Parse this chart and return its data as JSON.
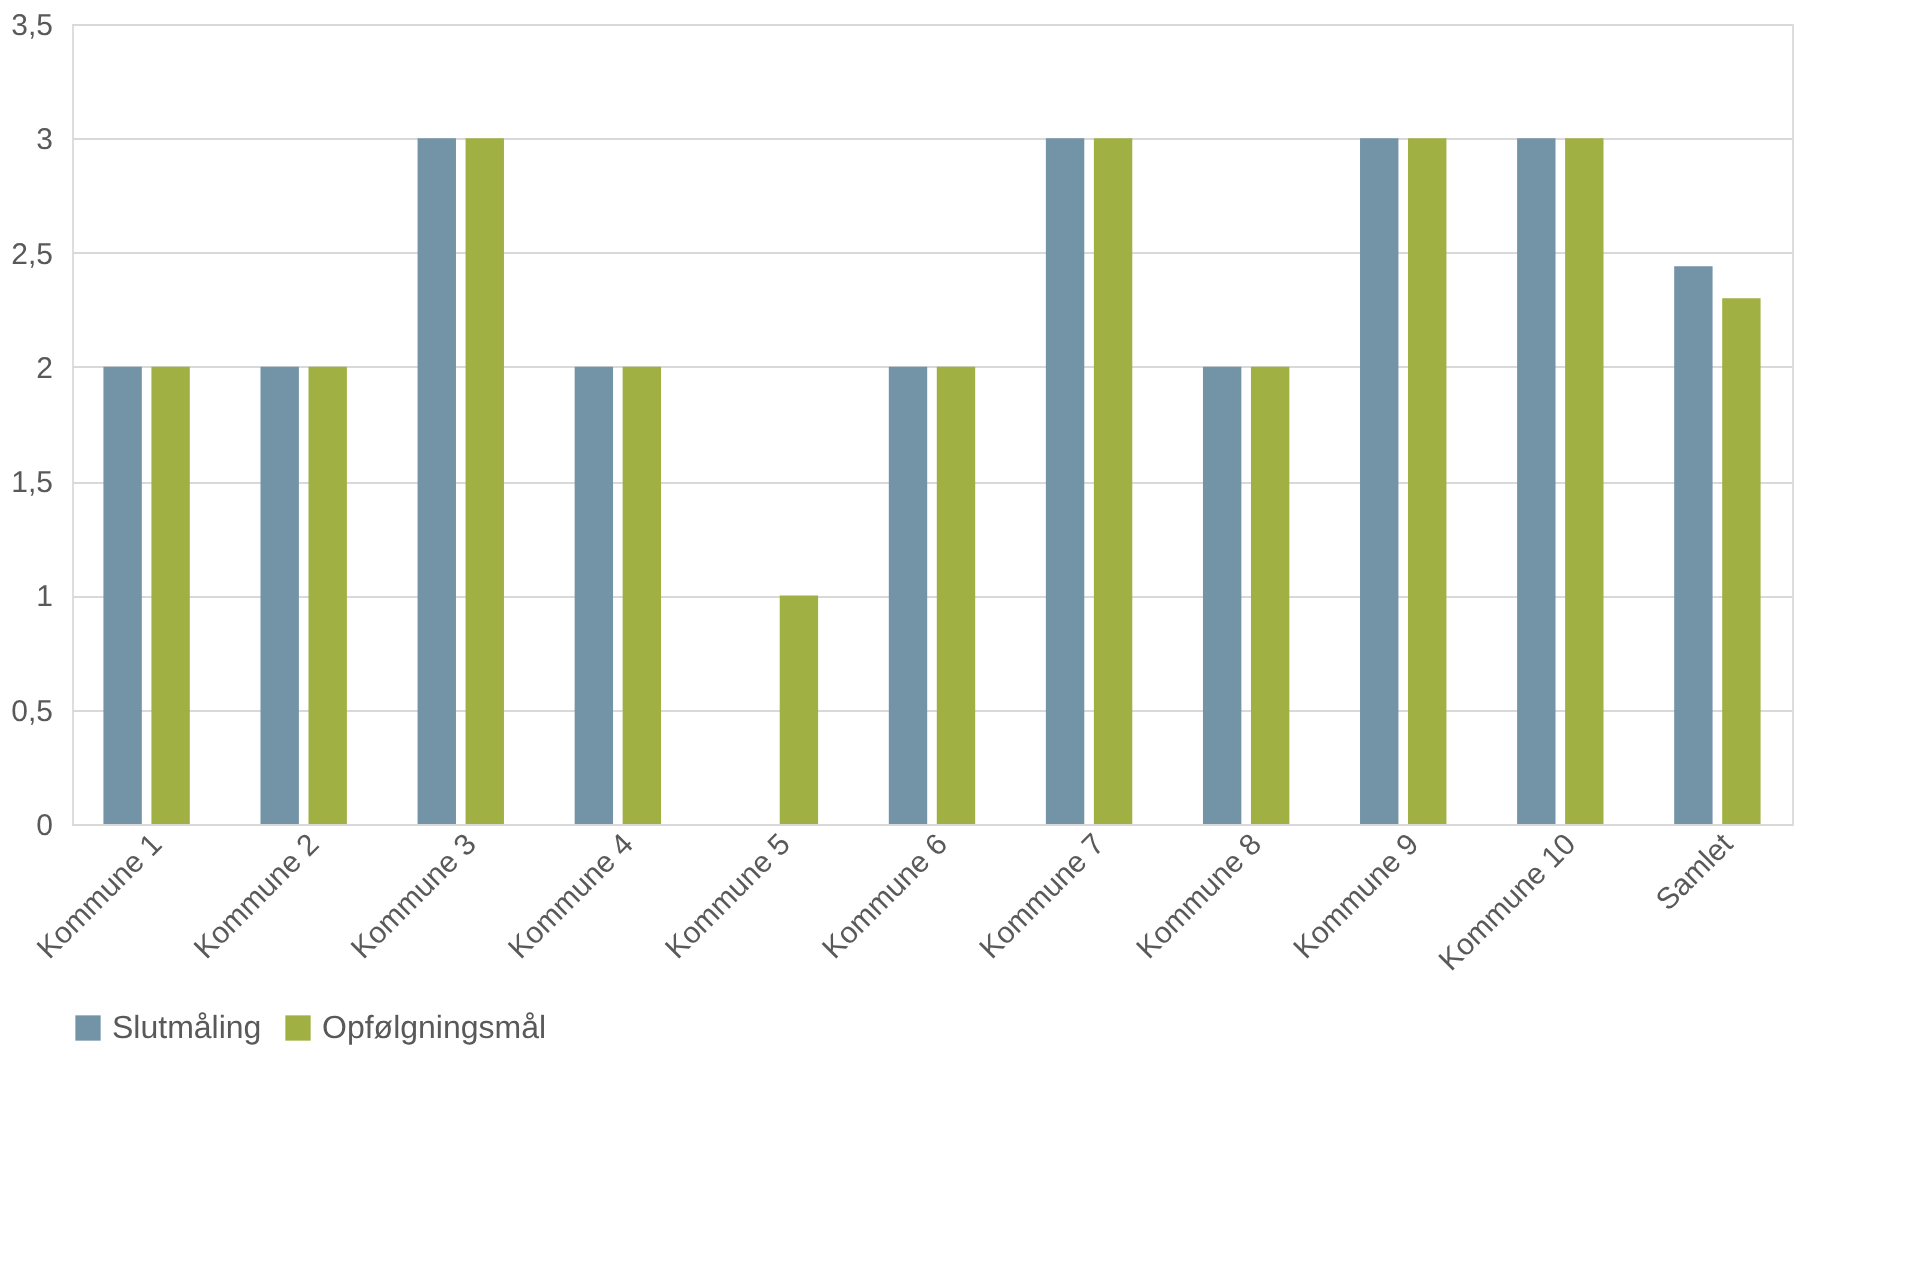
{
  "chart_data": {
    "type": "bar",
    "categories": [
      "Kommune 1",
      "Kommune 2",
      "Kommune 3",
      "Kommune 4",
      "Kommune 5",
      "Kommune 6",
      "Kommune 7",
      "Kommune 8",
      "Kommune 9",
      "Kommune 10",
      "Samlet"
    ],
    "series": [
      {
        "name": "Slutmåling",
        "color": "#7393a7",
        "values": [
          2,
          2,
          3,
          2,
          0,
          2,
          3,
          2,
          3,
          3,
          2.44
        ]
      },
      {
        "name": "Opfølgningsmål",
        "color": "#a0b043",
        "values": [
          2,
          2,
          3,
          2,
          1,
          2,
          3,
          2,
          3,
          3,
          2.3
        ]
      }
    ],
    "ylim": [
      0,
      3.5
    ],
    "yticks": [
      0,
      {
        "value": 0.5,
        "label": "0,5"
      },
      1,
      {
        "value": 1.5,
        "label": "1,5"
      },
      2,
      {
        "value": 2.5,
        "label": "2,5"
      },
      3,
      {
        "value": 3.5,
        "label": "3,5"
      }
    ],
    "grid": "y",
    "legend": "bottom"
  }
}
